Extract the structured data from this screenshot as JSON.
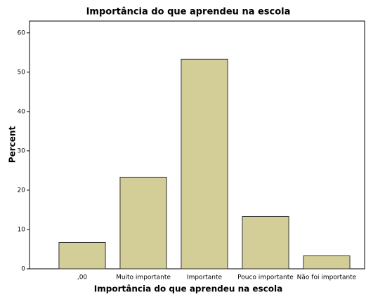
{
  "chart_data": {
    "type": "bar",
    "title": "Importância do que aprendeu na escola",
    "x_label": "Importância do que aprendeu na escola",
    "y_label": "Percent",
    "categories": [
      ",00",
      "Muito importante",
      "Importante",
      "Pouco importante",
      "Não foi importante"
    ],
    "values": [
      6.7,
      23.3,
      53.3,
      13.3,
      3.3
    ],
    "color": "#d3ce97",
    "ylim": [
      0,
      63
    ],
    "yticks": [
      0,
      10,
      20,
      30,
      40,
      50,
      60
    ],
    "grid": false
  }
}
